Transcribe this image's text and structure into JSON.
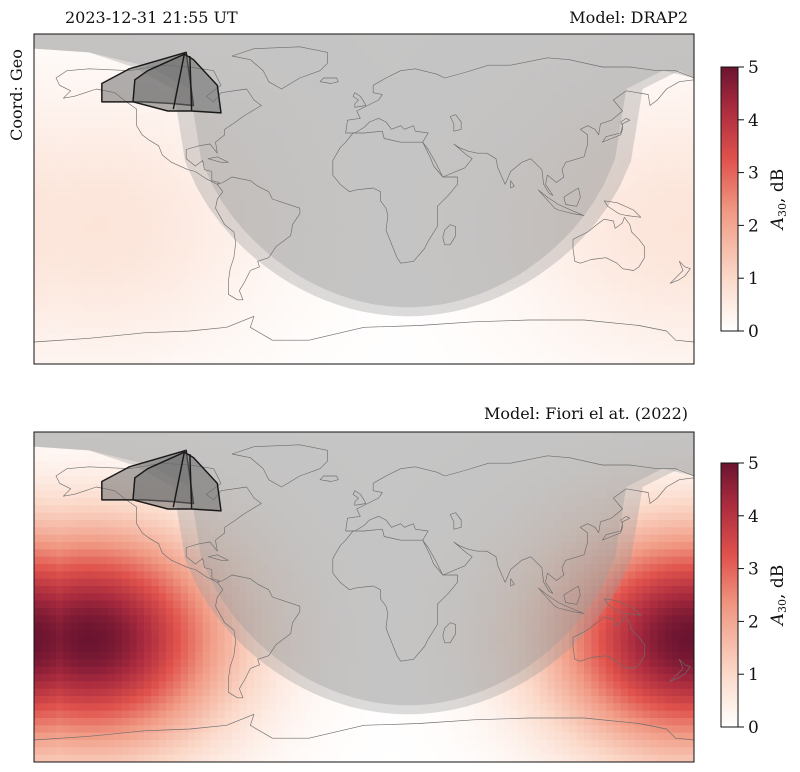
{
  "panels": [
    {
      "label_left": "2023-12-31 21:55 UT",
      "label_right": "Model: DRAP2",
      "coord_label": "Coord: Geo",
      "colorbar": {
        "label_main": "A",
        "label_sub": "30",
        "label_unit": ", dB",
        "ticks": [
          "0",
          "1",
          "2",
          "3",
          "4",
          "5"
        ]
      }
    },
    {
      "label_left": "",
      "label_right": "Model: Fiori el at. (2022)",
      "coord_label": "",
      "colorbar": {
        "label_main": "A",
        "label_sub": "30",
        "label_unit": ", dB",
        "ticks": [
          "0",
          "1",
          "2",
          "3",
          "4",
          "5"
        ]
      }
    }
  ],
  "colors": {
    "night": "#9a9a9a",
    "coast": "#6e6e6e",
    "cmap_low": "#ffffff",
    "cmap_mid": "#e8504a",
    "cmap_high": "#6b1430"
  },
  "chart_data": [
    {
      "type": "heatmap",
      "model": "DRAP2",
      "time": "2023-12-31 21:55 UT",
      "projection": "plate-carree",
      "coordinates": "Geo",
      "lon_range": [
        -180,
        180
      ],
      "lat_range": [
        -90,
        90
      ],
      "color_range": [
        0,
        5
      ],
      "colorbar_label": "A30, dB",
      "peak_value": 0.7,
      "peak_centers_lon_lat": [
        [
          -145,
          -15
        ],
        [
          175,
          -15
        ]
      ],
      "dayside_gaussian_width_deg": 90,
      "night_mask": "solar zenith > ~90°, subsolar point approx. lon -150, lat -23",
      "field_of_view_overlays": 2,
      "grid": false
    },
    {
      "type": "heatmap",
      "model": "Fiori el at. (2022)",
      "time": "2023-12-31 21:55 UT",
      "projection": "plate-carree",
      "coordinates": "Geo",
      "lon_range": [
        -180,
        180
      ],
      "lat_range": [
        -90,
        90
      ],
      "color_range": [
        0,
        5
      ],
      "colorbar_label": "A30, dB",
      "peak_value": 5.0,
      "peak_centers_lon_lat": [
        [
          -150,
          -23
        ],
        [
          178,
          -23
        ]
      ],
      "dayside_gaussian_width_deg": 70,
      "night_mask": "solar zenith > ~90°, subsolar point approx. lon -150, lat -23",
      "field_of_view_overlays": 2,
      "grid": false
    }
  ]
}
